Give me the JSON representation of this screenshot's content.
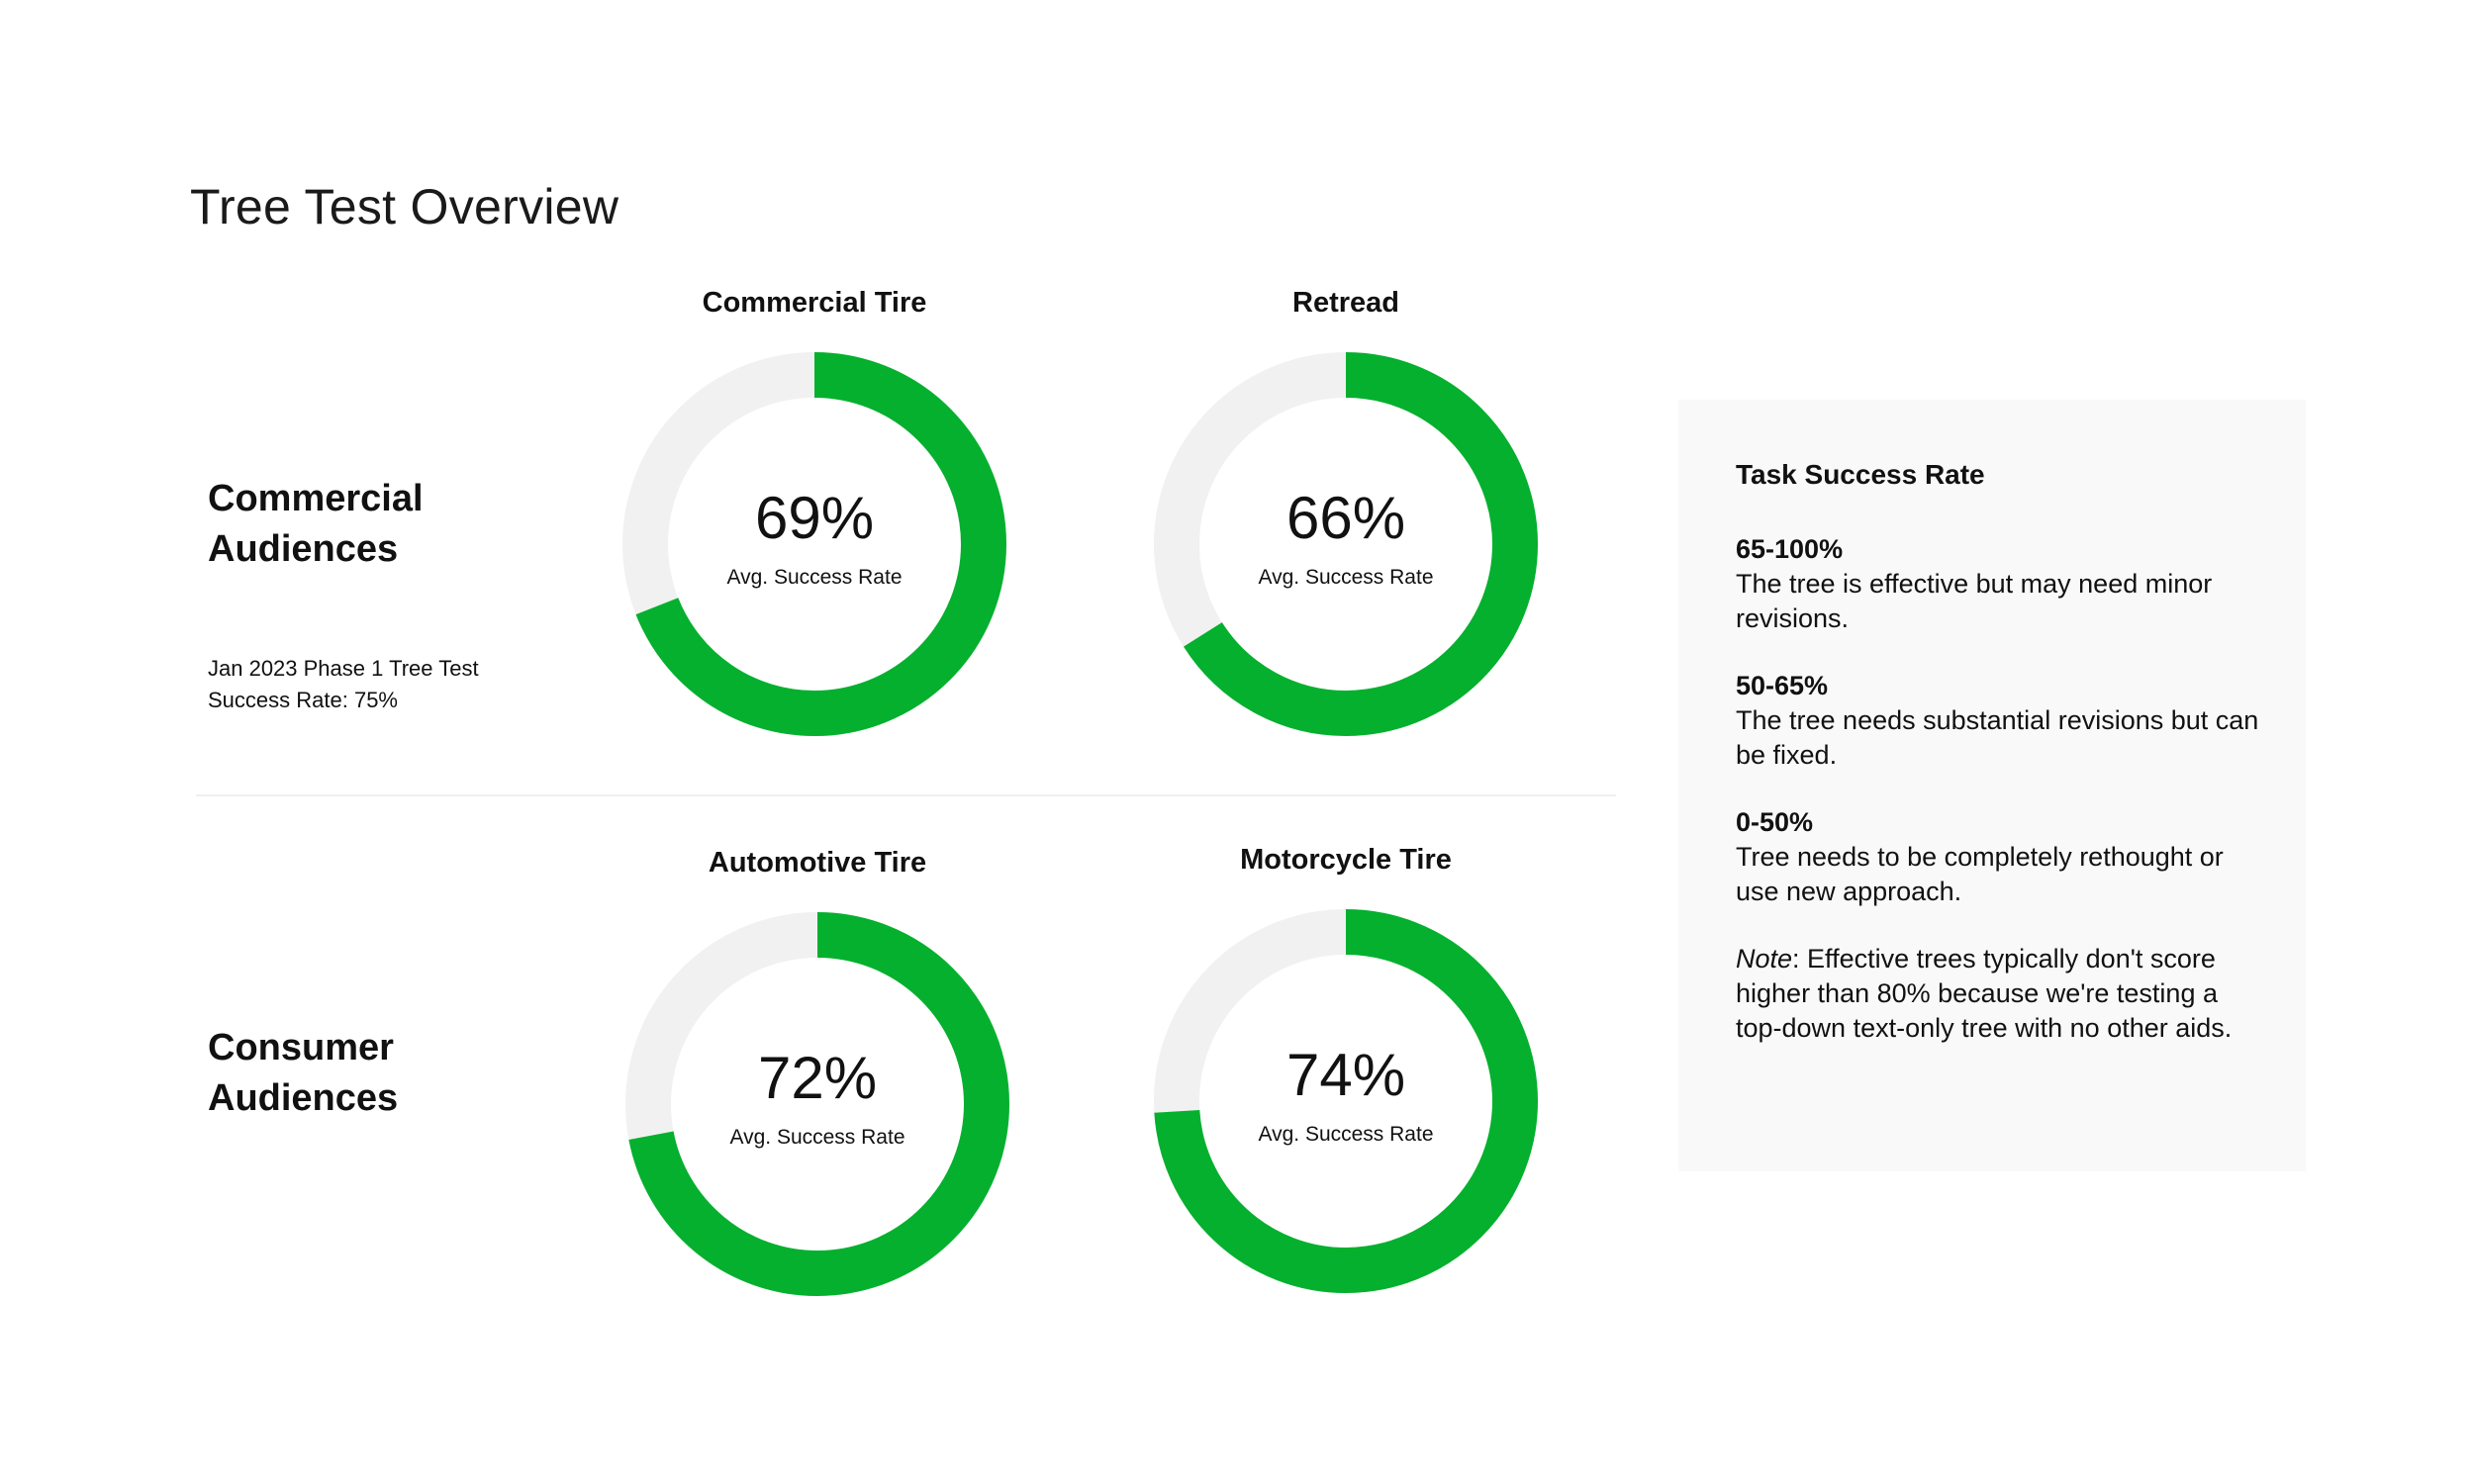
{
  "page": {
    "title": "Tree Test Overview"
  },
  "sections": {
    "commercial": {
      "title_line1": "Commercial",
      "title_line2": "Audiences",
      "note_line1": "Jan 2023 Phase 1 Tree Test",
      "note_line2": "Success Rate: 75%"
    },
    "consumer": {
      "title_line1": "Consumer",
      "title_line2": "Audiences"
    }
  },
  "legend": {
    "title": "Task Success Rate",
    "tiers": [
      {
        "range": "65-100%",
        "description": "The tree is effective but may need minor revisions."
      },
      {
        "range": "50-65%",
        "description": "The tree needs substantial revisions but can be fixed."
      },
      {
        "range": "0-50%",
        "description": "Tree needs to be completely rethought or use new approach."
      }
    ],
    "note_label": "Note",
    "note_text": ": Effective trees typically don't score higher than 80% because we're testing a top-down text-only tree with no other aids."
  },
  "colors": {
    "fill": "#04b02e",
    "track": "#f1f1f1"
  },
  "chart_data": [
    {
      "type": "pie",
      "title": "Commercial Tire",
      "value": 69,
      "label": "69%",
      "sublabel": "Avg. Success Rate",
      "max": 100
    },
    {
      "type": "pie",
      "title": "Retread",
      "value": 66,
      "label": "66%",
      "sublabel": "Avg. Success Rate",
      "max": 100
    },
    {
      "type": "pie",
      "title": "Automotive Tire",
      "value": 72,
      "label": "72%",
      "sublabel": "Avg. Success Rate",
      "max": 100
    },
    {
      "type": "pie",
      "title": "Motorcycle Tire",
      "value": 74,
      "label": "74%",
      "sublabel": "Avg. Success Rate",
      "max": 100
    }
  ]
}
